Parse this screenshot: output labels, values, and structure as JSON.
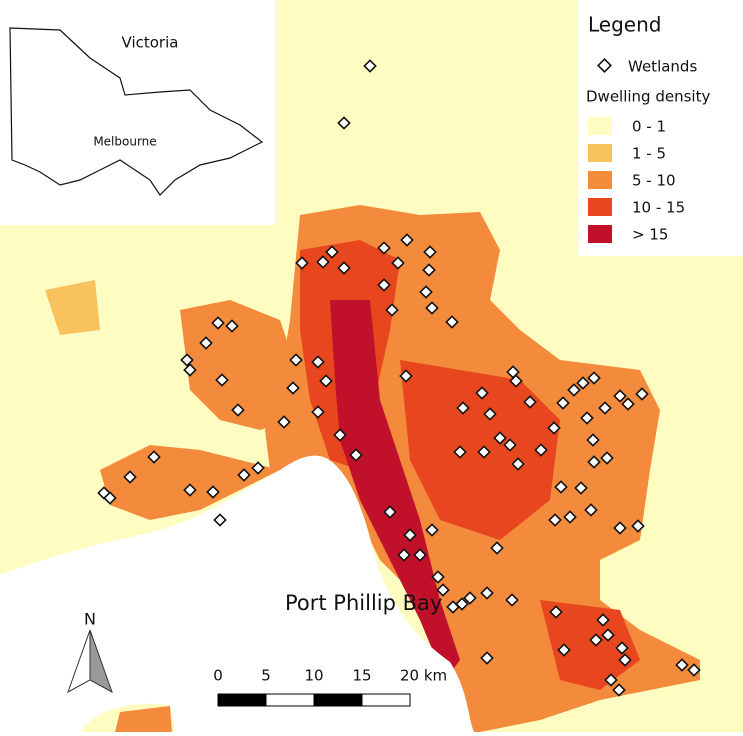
{
  "inset": {
    "region": "Victoria",
    "city": "Melbourne"
  },
  "legend": {
    "title": "Legend",
    "point_label": "Wetlands",
    "density_title": "Dwelling density",
    "classes": [
      {
        "label": "0 - 1",
        "color": "#fefcc0"
      },
      {
        "label": "1 - 5",
        "color": "#f8c25c"
      },
      {
        "label": "5 - 10",
        "color": "#f48a3c"
      },
      {
        "label": "10 - 15",
        "color": "#e8461e"
      },
      {
        "label": "> 15",
        "color": "#c0102a"
      }
    ]
  },
  "bay_label": "Port Phillip Bay",
  "north_label": "N",
  "scale_bar": {
    "labels": [
      "0",
      "5",
      "10",
      "15",
      "20 km"
    ]
  }
}
